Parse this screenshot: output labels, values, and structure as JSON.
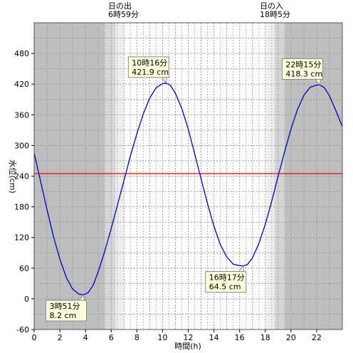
{
  "chart_data": {
    "type": "line",
    "title": "",
    "xlabel": "時間(h)",
    "ylabel": "水位(cm)",
    "xlim": [
      0,
      24
    ],
    "ylim": [
      -60,
      540
    ],
    "x_ticks": [
      0,
      2,
      4,
      6,
      8,
      10,
      12,
      14,
      16,
      18,
      20,
      22
    ],
    "y_ticks": [
      -60,
      0,
      60,
      120,
      180,
      240,
      300,
      360,
      420,
      480
    ],
    "reference_line": {
      "value": 245,
      "color": "#ff0000"
    },
    "series": [
      {
        "color": "#0000cc",
        "x": [
          0,
          0.5,
          1,
          1.5,
          2,
          2.5,
          3,
          3.5,
          3.85,
          4.2,
          4.6,
          5,
          5.5,
          6,
          6.5,
          7,
          7.5,
          8,
          8.5,
          9,
          9.5,
          10,
          10.27,
          10.6,
          11,
          11.5,
          12,
          12.5,
          13,
          13.5,
          14,
          14.5,
          15,
          15.5,
          16,
          16.28,
          16.6,
          17,
          17.5,
          18,
          18.5,
          19,
          19.5,
          20,
          20.5,
          21,
          21.5,
          22,
          22.25,
          22.6,
          23,
          23.5,
          24
        ],
        "y": [
          285,
          230,
          175,
          122,
          78,
          42,
          19,
          9,
          8.2,
          12,
          27,
          54,
          93,
          138,
          185,
          232,
          280,
          323,
          362,
          393,
          413,
          421,
          421.9,
          418,
          402,
          372,
          332,
          284,
          235,
          186,
          142,
          106,
          82,
          68,
          65,
          64.5,
          67,
          80,
          108,
          146,
          191,
          240,
          287,
          332,
          370,
          398,
          414,
          418,
          418.3,
          413,
          397,
          368,
          337
        ]
      }
    ],
    "sun": {
      "sunrise": {
        "label": "日の出",
        "time_text": "6時59分",
        "hour": 6.983
      },
      "sunset": {
        "label": "日の入",
        "time_text": "18時5分",
        "hour": 18.083
      }
    },
    "shading": {
      "night": [
        [
          0,
          5.5
        ],
        [
          19.5,
          24
        ]
      ],
      "twilight": [
        [
          5.5,
          6.35
        ],
        [
          18.7,
          19.5
        ]
      ],
      "dawn_dusk": [
        [
          6.35,
          6.98
        ],
        [
          18.08,
          18.7
        ]
      ]
    },
    "annotations": [
      {
        "time": "3時51分",
        "level": "8.2 cm",
        "x": 3.85,
        "y": 8.2
      },
      {
        "time": "10時16分",
        "level": "421.9 cm",
        "x": 10.27,
        "y": 421.9
      },
      {
        "time": "16時17分",
        "level": "64.5 cm",
        "x": 16.28,
        "y": 64.5
      },
      {
        "time": "22時15分",
        "level": "418.3 cm",
        "x": 22.25,
        "y": 418.3
      }
    ]
  }
}
